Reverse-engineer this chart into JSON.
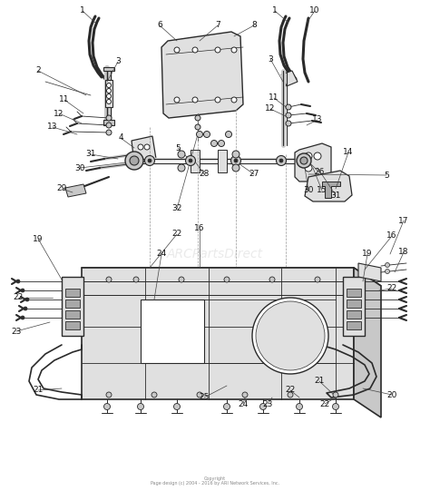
{
  "background_color": "#ffffff",
  "copyright_text": "Copyright\nPage design (c) 2004 - 2016 by ARI Network Services, Inc.",
  "watermark_text": "ARCPartsDirect",
  "dark": "#2a2a2a",
  "gray1": "#c8c8c8",
  "gray2": "#e0e0e0",
  "gray3": "#a8a8a8",
  "label_fs": 6.5,
  "label_color": "#111111"
}
